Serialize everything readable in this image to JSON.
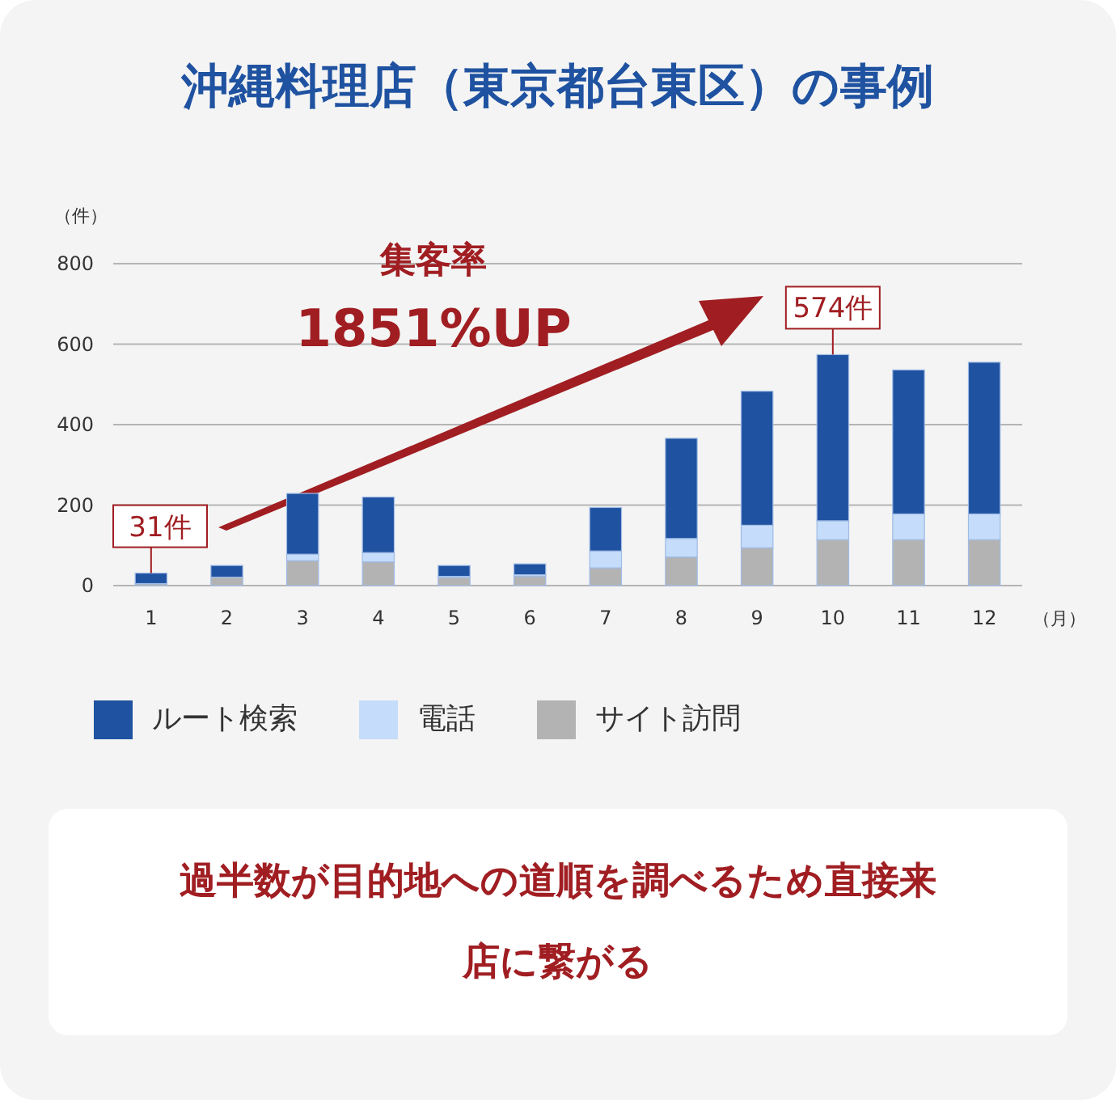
{
  "chart_data": {
    "type": "bar",
    "title": "沖縄料理店（東京都台東区）の事例",
    "xlabel": "（月）",
    "ylabel": "（件）",
    "categories": [
      "1",
      "2",
      "3",
      "4",
      "5",
      "6",
      "7",
      "8",
      "9",
      "10",
      "11",
      "12"
    ],
    "stacked": true,
    "series": [
      {
        "name": "サイト訪問",
        "color": "#b3b3b3",
        "values": [
          5,
          21,
          62,
          59,
          20,
          23,
          44,
          71,
          94,
          114,
          114,
          114
        ]
      },
      {
        "name": "電話",
        "color": "#c5dcfa",
        "values": [
          null,
          null,
          16,
          23,
          3,
          4,
          42,
          46,
          56,
          47,
          64,
          64
        ]
      },
      {
        "name": "ルート検索",
        "color": "#1f52a0",
        "values": [
          26,
          29,
          151,
          138,
          27,
          27,
          108,
          249,
          333,
          413,
          358,
          377
        ]
      }
    ],
    "ylim": [
      0,
      800
    ],
    "yticks": [
      0,
      200,
      400,
      600,
      800
    ],
    "grid": "y",
    "legend": "bottom",
    "annotations": [
      "集客率",
      "1851%UP",
      {
        "text": "31件",
        "x": "1",
        "y": 31
      },
      {
        "text": "574件",
        "x": "10",
        "y": 574
      },
      "過半数が目的地への道順を調べるため直接来店に繋がる"
    ]
  }
}
